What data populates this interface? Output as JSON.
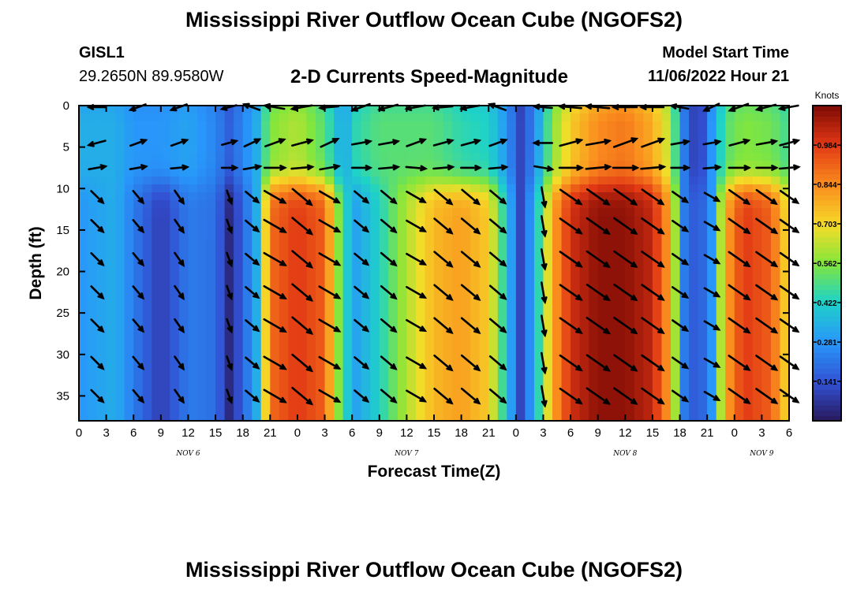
{
  "header": {
    "title": "Mississippi River Outflow Ocean Cube (NGOFS2)",
    "station": "GISL1",
    "coordinates": "29.2650N  89.9580W",
    "subtitle": "2-D Currents Speed-Magnitude",
    "model_start_label": "Model Start Time",
    "model_start_time": "11/06/2022 Hour 21"
  },
  "footer": {
    "title": "Mississippi River Outflow Ocean Cube (NGOFS2)"
  },
  "chart_data": {
    "type": "heatmap",
    "title": "2-D Currents Speed-Magnitude",
    "xlabel": "Forecast Time(Z)",
    "ylabel": "Depth (ft)",
    "xlim": [
      0,
      78
    ],
    "ylim": [
      0,
      38
    ],
    "x_tick_labels": [
      "0",
      "3",
      "6",
      "9",
      "12",
      "15",
      "18",
      "21",
      "0",
      "3",
      "6",
      "9",
      "12",
      "15",
      "18",
      "21",
      "0",
      "3",
      "6",
      "9",
      "12",
      "15",
      "18",
      "21",
      "0",
      "3",
      "6"
    ],
    "y_ticks": [
      0,
      5,
      10,
      15,
      20,
      25,
      30,
      35
    ],
    "y_tick_labels": [
      "0",
      "5",
      "10",
      "15",
      "20",
      "25",
      "30",
      "35"
    ],
    "date_labels": [
      {
        "label": "NOV 6",
        "x": 12
      },
      {
        "label": "NOV 7",
        "x": 36
      },
      {
        "label": "NOV 8",
        "x": 60
      },
      {
        "label": "NOV 9",
        "x": 75
      }
    ],
    "colorbar": {
      "unit": "Knots",
      "min": 0.0,
      "max": 1.125,
      "ticks": [
        0.141,
        0.281,
        0.422,
        0.562,
        0.703,
        0.844,
        0.984
      ],
      "tick_labels": [
        "0.141",
        "0.281",
        "0.422",
        "0.562",
        "0.703",
        "0.844",
        "0.984"
      ]
    },
    "speed_profile_by_time": [
      {
        "t": 0,
        "surface": 0.3,
        "deep": 0.25
      },
      {
        "t": 4,
        "surface": 0.3,
        "deep": 0.3
      },
      {
        "t": 6,
        "surface": 0.25,
        "deep": 0.2
      },
      {
        "t": 9,
        "surface": 0.25,
        "deep": 0.08
      },
      {
        "t": 12,
        "surface": 0.28,
        "deep": 0.2
      },
      {
        "t": 15,
        "surface": 0.22,
        "deep": 0.18
      },
      {
        "t": 16.5,
        "surface": 0.15,
        "deep": 0.04
      },
      {
        "t": 18,
        "surface": 0.22,
        "deep": 0.15
      },
      {
        "t": 19.5,
        "surface": 0.3,
        "deep": 0.3
      },
      {
        "t": 21,
        "surface": 0.5,
        "deep": 0.8
      },
      {
        "t": 24,
        "surface": 0.55,
        "deep": 0.88
      },
      {
        "t": 27,
        "surface": 0.45,
        "deep": 0.82
      },
      {
        "t": 29,
        "surface": 0.28,
        "deep": 0.4
      },
      {
        "t": 30.5,
        "surface": 0.4,
        "deep": 0.28
      },
      {
        "t": 33,
        "surface": 0.45,
        "deep": 0.38
      },
      {
        "t": 36,
        "surface": 0.45,
        "deep": 0.55
      },
      {
        "t": 39,
        "surface": 0.45,
        "deep": 0.68
      },
      {
        "t": 42,
        "surface": 0.4,
        "deep": 0.72
      },
      {
        "t": 45,
        "surface": 0.38,
        "deep": 0.65
      },
      {
        "t": 47,
        "surface": 0.25,
        "deep": 0.35
      },
      {
        "t": 48.5,
        "surface": 0.1,
        "deep": 0.1
      },
      {
        "t": 50,
        "surface": 0.22,
        "deep": 0.3
      },
      {
        "t": 52,
        "surface": 0.5,
        "deep": 0.7
      },
      {
        "t": 54,
        "surface": 0.65,
        "deep": 0.9
      },
      {
        "t": 57,
        "surface": 0.75,
        "deep": 0.98
      },
      {
        "t": 60,
        "surface": 0.78,
        "deep": 0.98
      },
      {
        "t": 63,
        "surface": 0.7,
        "deep": 0.92
      },
      {
        "t": 65,
        "surface": 0.55,
        "deep": 0.7
      },
      {
        "t": 66.5,
        "surface": 0.2,
        "deep": 0.2
      },
      {
        "t": 68,
        "surface": 0.05,
        "deep": 0.12
      },
      {
        "t": 69.5,
        "surface": 0.25,
        "deep": 0.25
      },
      {
        "t": 71,
        "surface": 0.45,
        "deep": 0.7
      },
      {
        "t": 73,
        "surface": 0.5,
        "deep": 0.88
      },
      {
        "t": 76,
        "surface": 0.48,
        "deep": 0.82
      },
      {
        "t": 78,
        "surface": 0.42,
        "deep": 0.6
      }
    ],
    "vector_times": [
      2,
      6.5,
      11,
      16.5,
      19,
      21.5,
      24.5,
      27.5,
      31,
      34,
      37,
      40,
      43,
      46,
      51,
      54,
      57,
      60,
      63,
      66,
      69.5,
      72.5,
      75.5,
      78
    ],
    "vector_depths": [
      0,
      4.5,
      7.5,
      11,
      14.5,
      18.5,
      22.5,
      26.5,
      31,
      35
    ],
    "vector_angles_deg": {
      "surface": [
        180,
        200,
        200,
        195,
        160,
        170,
        190,
        185,
        200,
        195,
        190,
        185,
        190,
        160,
        175,
        175,
        175,
        180,
        180,
        170,
        205,
        200,
        195,
        190
      ],
      "mid": [
        195,
        20,
        20,
        15,
        25,
        20,
        15,
        25,
        10,
        10,
        20,
        15,
        15,
        20,
        180,
        15,
        10,
        20,
        20,
        10,
        10,
        15,
        10,
        15
      ],
      "layer3": [
        10,
        10,
        5,
        0,
        10,
        0,
        5,
        10,
        0,
        5,
        355,
        5,
        0,
        5,
        350,
        0,
        5,
        0,
        5,
        0,
        5,
        0,
        0,
        5
      ],
      "deep": [
        315,
        310,
        305,
        290,
        320,
        330,
        320,
        330,
        320,
        320,
        330,
        320,
        320,
        320,
        280,
        325,
        325,
        325,
        325,
        325,
        330,
        325,
        325,
        325
      ]
    }
  }
}
